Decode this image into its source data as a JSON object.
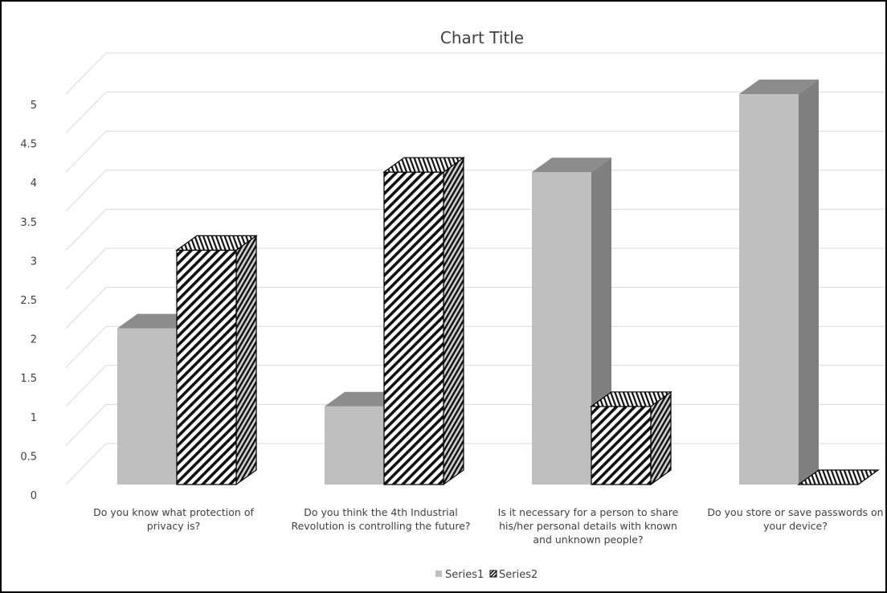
{
  "chart_data": {
    "type": "bar",
    "style": "3d-clustered-column",
    "title": "Chart Title",
    "categories": [
      [
        "Do you know what protection of",
        "privacy is?"
      ],
      [
        "Do you think the 4th Industrial",
        "Revolution is controlling the future?"
      ],
      [
        "Is it necessary for a person to share",
        "his/her personal details with known",
        "and unknown people?"
      ],
      [
        "Do you store or save passwords on",
        "your device?"
      ]
    ],
    "series": [
      {
        "name": "Series1",
        "values": [
          2,
          1,
          4,
          5
        ],
        "fill": "solid",
        "color": "#bfbfbf"
      },
      {
        "name": "Series2",
        "values": [
          3,
          4,
          1,
          0
        ],
        "fill": "diagonal-hatch",
        "color": "#000000"
      }
    ],
    "ylim": [
      0,
      5
    ],
    "yticks": [
      "0",
      "0.5",
      "1",
      "1.5",
      "2",
      "2.5",
      "3",
      "3.5",
      "4",
      "4.5",
      "5"
    ],
    "grid": true,
    "legend": "bottom"
  }
}
